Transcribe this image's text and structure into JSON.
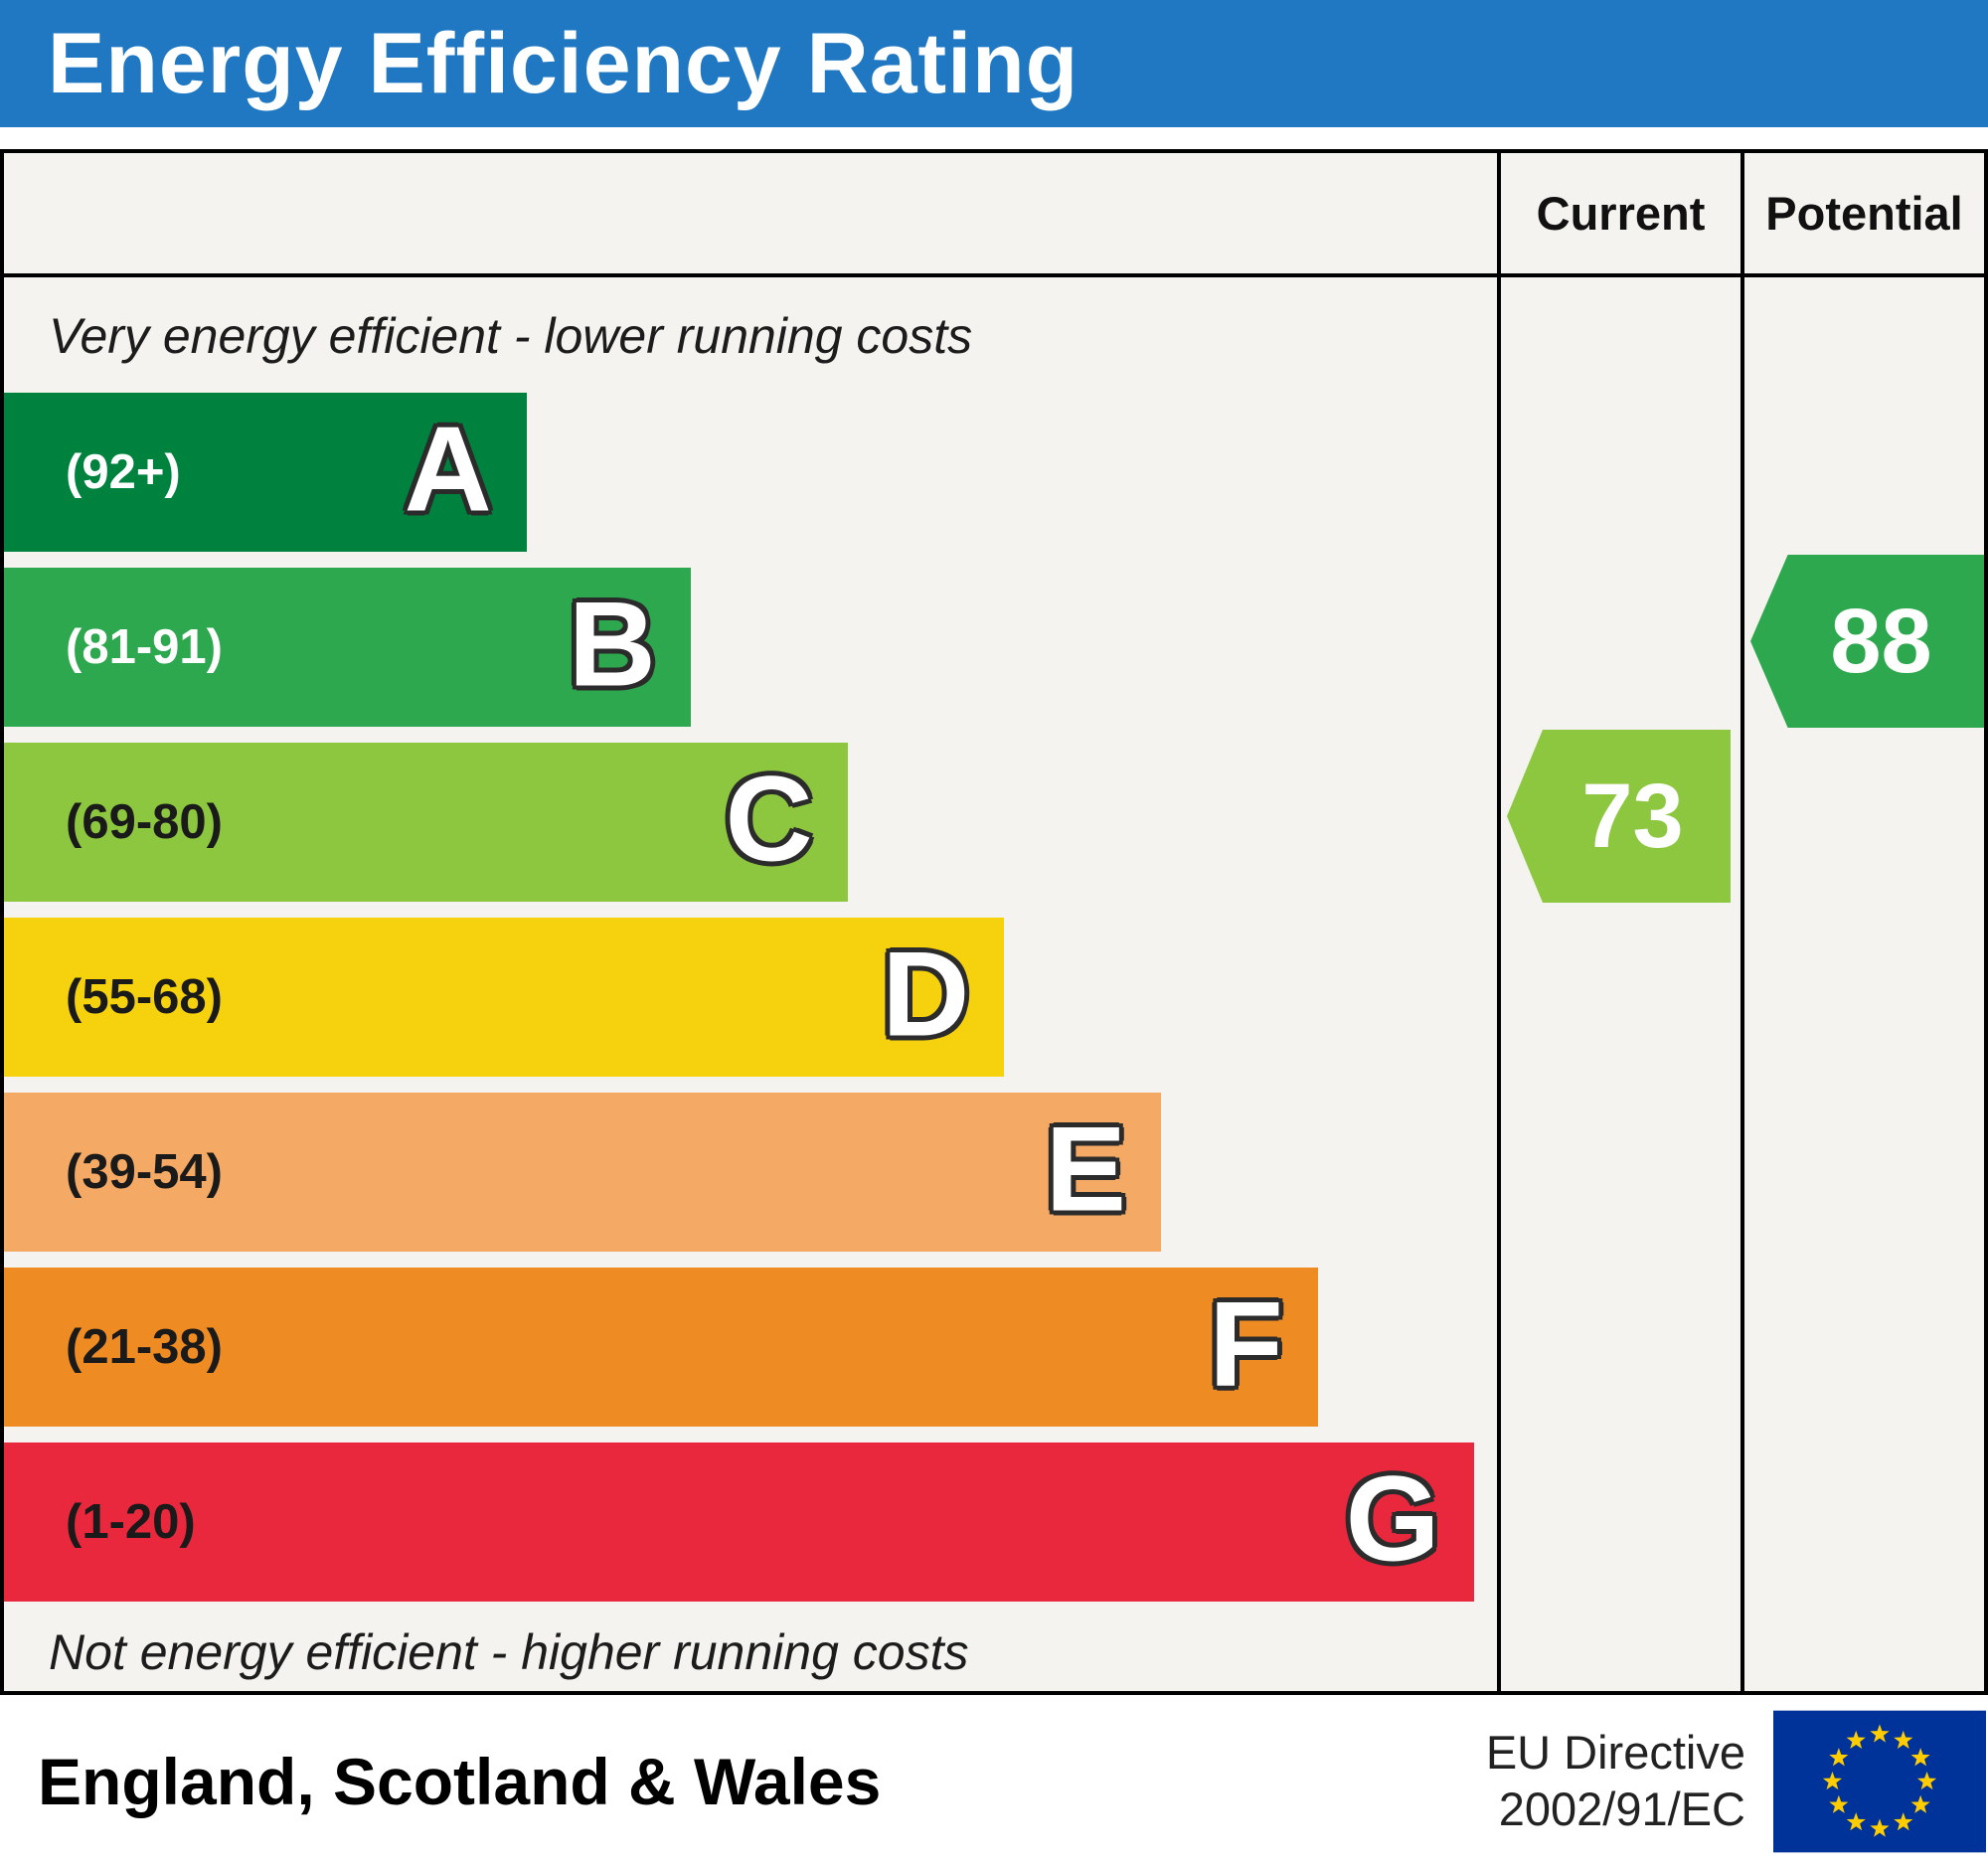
{
  "title": "Energy Efficiency Rating",
  "colors": {
    "title_bar": "#1f78c1",
    "border": "#000000",
    "chart_background": "#f4f3ef"
  },
  "columns": {
    "current": "Current",
    "potential": "Potential"
  },
  "notes": {
    "top": "Very energy efficient - lower running costs",
    "bottom": "Not energy efficient - higher running costs"
  },
  "bands": [
    {
      "letter": "A",
      "range": "(92+)",
      "color": "#00823f",
      "width_pct": 35,
      "text_color": "#ffffff"
    },
    {
      "letter": "B",
      "range": "(81-91)",
      "color": "#2ea84e",
      "width_pct": 46,
      "text_color": "#ffffff"
    },
    {
      "letter": "C",
      "range": "(69-80)",
      "color": "#8dc63f",
      "width_pct": 56.5,
      "text_color": "#1a1a1a"
    },
    {
      "letter": "D",
      "range": "(55-68)",
      "color": "#f6d20e",
      "width_pct": 67,
      "text_color": "#1a1a1a"
    },
    {
      "letter": "E",
      "range": "(39-54)",
      "color": "#f4aa64",
      "width_pct": 77.5,
      "text_color": "#1a1a1a"
    },
    {
      "letter": "F",
      "range": "(21-38)",
      "color": "#ef8b23",
      "width_pct": 88,
      "text_color": "#1a1a1a"
    },
    {
      "letter": "G",
      "range": "(1-20)",
      "color": "#e9273d",
      "width_pct": 98.5,
      "text_color": "#1a1a1a"
    }
  ],
  "ratings": {
    "current": {
      "value": "73",
      "band": "C",
      "color": "#8dc63f"
    },
    "potential": {
      "value": "88",
      "band": "B",
      "color": "#2ea84e"
    }
  },
  "footer": {
    "region": "England, Scotland & Wales",
    "directive_line1": "EU Directive",
    "directive_line2": "2002/91/EC",
    "flag_field_color": "#003399",
    "flag_star_color": "#ffcc00"
  },
  "chart_data": {
    "type": "bar",
    "title": "Energy Efficiency Rating",
    "categories": [
      "A",
      "B",
      "C",
      "D",
      "E",
      "F",
      "G"
    ],
    "tick_labels": [
      "(92+)",
      "(81-91)",
      "(69-80)",
      "(55-68)",
      "(39-54)",
      "(21-38)",
      "(1-20)"
    ],
    "band_colors": [
      "#00823f",
      "#2ea84e",
      "#8dc63f",
      "#f6d20e",
      "#f4aa64",
      "#ef8b23",
      "#e9273d"
    ],
    "bar_relative_widths": [
      0.35,
      0.46,
      0.565,
      0.67,
      0.775,
      0.88,
      0.985
    ],
    "series": [
      {
        "name": "Current",
        "value": 73,
        "band": "C"
      },
      {
        "name": "Potential",
        "value": 88,
        "band": "B"
      }
    ],
    "top_annotation": "Very energy efficient - lower running costs",
    "bottom_annotation": "Not energy efficient - higher running costs",
    "footer_region": "England, Scotland & Wales",
    "footer_directive": "EU Directive 2002/91/EC",
    "legend_position": "right-columns",
    "grid": false
  }
}
